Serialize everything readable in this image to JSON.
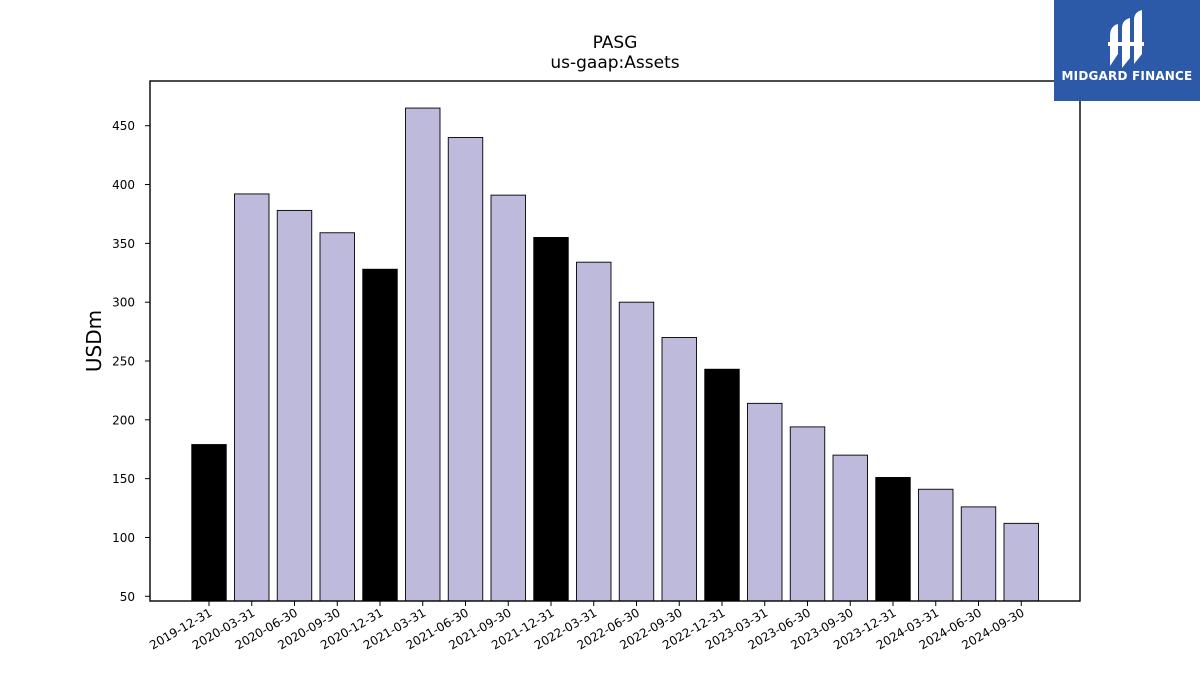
{
  "chart_data": {
    "type": "bar",
    "title": "PASG",
    "subtitle": "us-gaap:Assets",
    "ylabel": "USDm",
    "categories": [
      "2019-12-31",
      "2020-03-31",
      "2020-06-30",
      "2020-09-30",
      "2020-12-31",
      "2021-03-31",
      "2021-06-30",
      "2021-09-30",
      "2021-12-31",
      "2022-03-31",
      "2022-06-30",
      "2022-09-30",
      "2022-12-31",
      "2023-03-31",
      "2023-06-30",
      "2023-09-30",
      "2023-12-31",
      "2024-03-31",
      "2024-06-30",
      "2024-09-30"
    ],
    "values": [
      179,
      392,
      378,
      359,
      328,
      465,
      440,
      391,
      355,
      334,
      300,
      270,
      243,
      214,
      194,
      170,
      151,
      141,
      126,
      112
    ],
    "highlight": [
      true,
      false,
      false,
      false,
      true,
      false,
      false,
      false,
      true,
      false,
      false,
      false,
      true,
      false,
      false,
      false,
      true,
      false,
      false,
      false
    ],
    "ylim": [
      46,
      488
    ],
    "yticks": [
      50,
      100,
      150,
      200,
      250,
      300,
      350,
      400,
      450
    ],
    "colors": {
      "highlight": "#000000",
      "normal": "#bdbadb",
      "edge": "#000000"
    },
    "grid": false
  },
  "logo": {
    "text": "MIDGARD FINANCE",
    "background": "#2c5aa8"
  }
}
